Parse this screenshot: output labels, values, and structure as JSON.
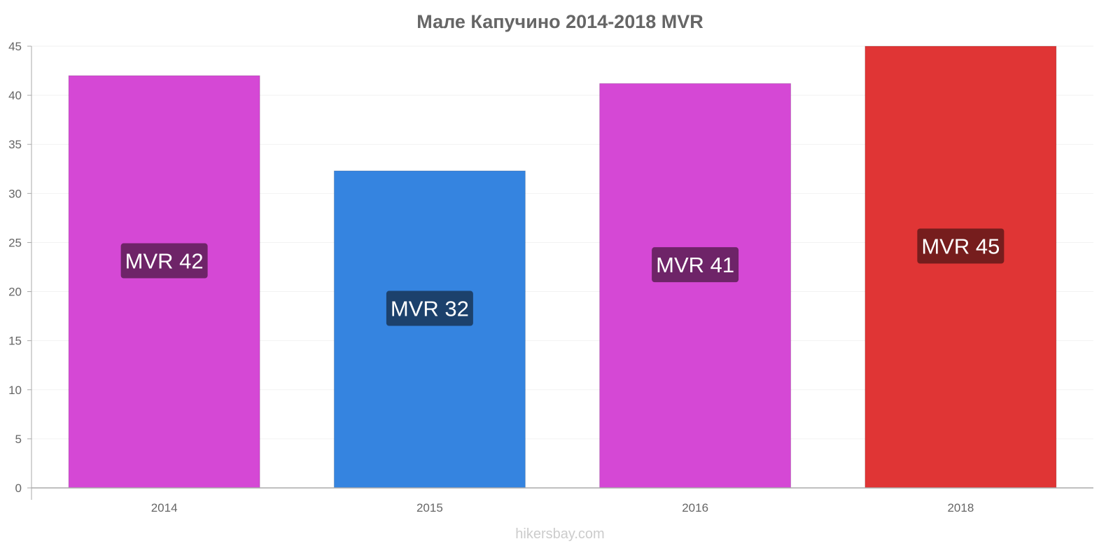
{
  "chart_data": {
    "type": "bar",
    "title": "Мале Капучино 2014-2018 MVR",
    "categories": [
      "2014",
      "2015",
      "2016",
      "2018"
    ],
    "values": [
      42.0,
      32.3,
      41.2,
      45.0
    ],
    "data_labels": [
      "MVR 42",
      "MVR 32",
      "MVR 41",
      "MVR 45"
    ],
    "bar_colors": [
      "#d548d5",
      "#3584e0",
      "#d548d5",
      "#e03535"
    ],
    "label_colors": [
      "#6e2468",
      "#1c416c",
      "#6e2468",
      "#761d1d"
    ],
    "yticks": [
      0,
      5,
      10,
      15,
      20,
      25,
      30,
      35,
      40,
      45
    ],
    "ylim": [
      0,
      45
    ],
    "xlabel": "",
    "ylabel": "",
    "grid": true
  },
  "credit": "hikersbay.com"
}
